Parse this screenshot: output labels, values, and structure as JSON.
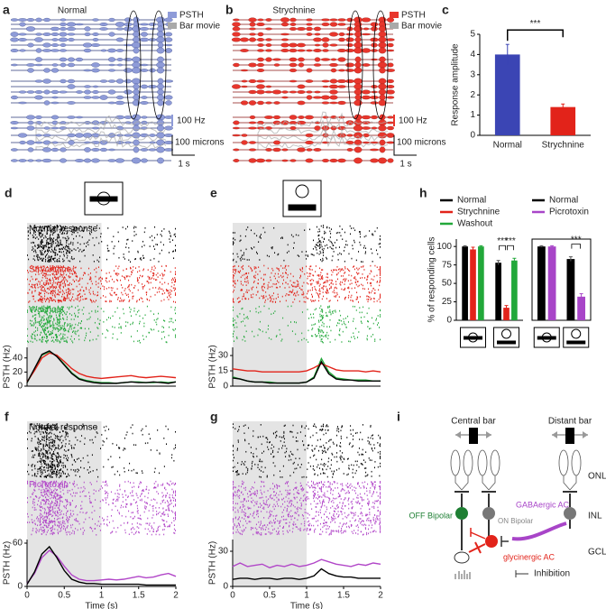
{
  "panel_letters": [
    "a",
    "b",
    "c",
    "d",
    "e",
    "f",
    "g",
    "h",
    "i"
  ],
  "panel_a": {
    "title": "Normal",
    "legend": [
      {
        "name": "PSTH",
        "color": "#8e9bd8"
      },
      {
        "name": "Bar movie",
        "color": "#a9a9a9"
      }
    ],
    "scale_rate": "100 Hz",
    "scale_length": "100 microns",
    "scale_time": "1 s"
  },
  "panel_b": {
    "title": "Strychnine",
    "legend": [
      {
        "name": "PSTH",
        "color": "#e8362c"
      },
      {
        "name": "Bar movie",
        "color": "#a9a9a9"
      }
    ],
    "scale_rate": "100 Hz",
    "scale_length": "100 microns",
    "scale_time": "1 s"
  },
  "raster_labels": {
    "d": [
      {
        "text": "Normal response",
        "color": "#000000"
      },
      {
        "text": "Strychnine",
        "color": "#e2231a"
      },
      {
        "text": "Washout",
        "color": "#22a83a"
      }
    ],
    "f": [
      {
        "text": "Normal response",
        "color": "#000000"
      },
      {
        "text": "Picrotoxin",
        "color": "#b146c8"
      }
    ]
  },
  "chart_data": [
    {
      "type": "bar",
      "ylabel": "Response amplitude",
      "categories": [
        "Normal",
        "Strychnine"
      ],
      "values": [
        4.0,
        1.4
      ],
      "errors": [
        0.5,
        0.15
      ],
      "colors": [
        "#3b45b4",
        "#e2231a"
      ],
      "ylim": [
        0,
        5
      ],
      "yticks": [
        0,
        1,
        2,
        3,
        4,
        5
      ],
      "significance": [
        "***"
      ]
    },
    {
      "type": "bar",
      "ylabel": "% of responding cells",
      "categories": [
        null,
        null
      ],
      "series": [
        {
          "name": "Normal",
          "color": "#000000",
          "values": [
            100,
            78
          ],
          "errors": [
            1,
            3
          ]
        },
        {
          "name": "Strychnine",
          "color": "#e2231a",
          "values": [
            96,
            17
          ],
          "errors": [
            3,
            3
          ]
        },
        {
          "name": "Washout",
          "color": "#22a83a",
          "values": [
            100,
            81
          ],
          "errors": [
            1,
            3
          ]
        }
      ],
      "ylim": [
        0,
        110
      ],
      "yticks": [
        0,
        25,
        50,
        75,
        100
      ],
      "significance": [
        "***",
        "***"
      ]
    },
    {
      "type": "bar",
      "categories": [
        null,
        null
      ],
      "series": [
        {
          "name": "Normal",
          "color": "#000000",
          "values": [
            100,
            83
          ],
          "errors": [
            1,
            3
          ]
        },
        {
          "name": "Picrotoxin",
          "color": "#a845c8",
          "values": [
            100,
            32
          ],
          "errors": [
            1,
            4
          ]
        }
      ],
      "ylim": [
        0,
        110
      ],
      "frame": true,
      "significance": [
        "***"
      ]
    },
    {
      "type": "line",
      "ylabel": "PSTH (Hz)",
      "xlim": [
        0,
        2
      ],
      "ylim": [
        0,
        55
      ],
      "yticks": [
        0,
        20,
        40
      ],
      "stimulus_window": [
        0,
        1
      ],
      "x": [
        0,
        0.1,
        0.2,
        0.3,
        0.4,
        0.5,
        0.6,
        0.7,
        0.8,
        0.9,
        1,
        1.1,
        1.2,
        1.3,
        1.4,
        1.5,
        1.6,
        1.7,
        1.8,
        1.9,
        2
      ],
      "series": [
        {
          "name": "Normal",
          "color": "#000000",
          "values": [
            5,
            25,
            45,
            50,
            42,
            30,
            18,
            10,
            7,
            5,
            4,
            4,
            4,
            5,
            6,
            5,
            5,
            6,
            5,
            4,
            6
          ]
        },
        {
          "name": "Strychnine",
          "color": "#e2231a",
          "values": [
            6,
            22,
            40,
            47,
            44,
            35,
            25,
            18,
            14,
            12,
            11,
            12,
            13,
            14,
            15,
            13,
            12,
            13,
            14,
            13,
            12
          ]
        },
        {
          "name": "Washout",
          "color": "#22a83a",
          "values": [
            5,
            24,
            44,
            49,
            43,
            31,
            19,
            11,
            8,
            6,
            5,
            5,
            4,
            5,
            6,
            6,
            5,
            5,
            6,
            5,
            6
          ]
        }
      ]
    },
    {
      "type": "line",
      "ylabel": "PSTH (Hz)",
      "xlim": [
        0,
        2
      ],
      "ylim": [
        0,
        38
      ],
      "yticks": [
        0,
        15,
        30
      ],
      "stimulus_window": [
        0,
        1
      ],
      "x": [
        0,
        0.1,
        0.2,
        0.3,
        0.4,
        0.5,
        0.6,
        0.7,
        0.8,
        0.9,
        1,
        1.1,
        1.2,
        1.3,
        1.4,
        1.5,
        1.6,
        1.7,
        1.8,
        1.9,
        2
      ],
      "series": [
        {
          "name": "Normal",
          "color": "#000000",
          "values": [
            8,
            7,
            5,
            4,
            4,
            3,
            3,
            3,
            3,
            3,
            4,
            8,
            24,
            12,
            7,
            6,
            6,
            5,
            5,
            5,
            5
          ]
        },
        {
          "name": "Strychnine",
          "color": "#e2231a",
          "values": [
            17,
            16,
            15,
            15,
            14,
            14,
            14,
            14,
            14,
            14,
            15,
            18,
            22,
            19,
            16,
            15,
            15,
            15,
            14,
            15,
            14
          ]
        },
        {
          "name": "Washout",
          "color": "#22a83a",
          "values": [
            9,
            7,
            5,
            4,
            4,
            4,
            3,
            3,
            3,
            3,
            4,
            9,
            27,
            14,
            8,
            7,
            6,
            6,
            6,
            5,
            5
          ]
        }
      ]
    },
    {
      "type": "line",
      "ylabel": "PSTH (Hz)",
      "xlabel": "Time (s)",
      "xlim": [
        0,
        2
      ],
      "ylim": [
        0,
        65
      ],
      "yticks": [
        0,
        60
      ],
      "xticks": [
        0,
        0.5,
        1,
        1.5,
        2
      ],
      "stimulus_window": [
        0,
        1
      ],
      "x": [
        0,
        0.1,
        0.2,
        0.3,
        0.4,
        0.5,
        0.6,
        0.7,
        0.8,
        0.9,
        1,
        1.1,
        1.2,
        1.3,
        1.4,
        1.5,
        1.6,
        1.7,
        1.8,
        1.9,
        2
      ],
      "series": [
        {
          "name": "Normal",
          "color": "#000000",
          "values": [
            3,
            20,
            45,
            55,
            40,
            22,
            10,
            6,
            4,
            4,
            3,
            3,
            3,
            3,
            3,
            3,
            2,
            2,
            2,
            2,
            2
          ]
        },
        {
          "name": "Picrotoxin",
          "color": "#b146c8",
          "values": [
            4,
            18,
            40,
            50,
            42,
            28,
            16,
            10,
            8,
            8,
            9,
            10,
            9,
            10,
            12,
            14,
            12,
            13,
            16,
            18,
            14
          ]
        }
      ]
    },
    {
      "type": "line",
      "ylabel": "PSTH (Hz)",
      "xlabel": "Time (s)",
      "xlim": [
        0,
        2
      ],
      "ylim": [
        0,
        40
      ],
      "yticks": [
        0,
        30
      ],
      "xticks": [
        0,
        0.5,
        1,
        1.5,
        2
      ],
      "stimulus_window": [
        0,
        1
      ],
      "x": [
        0,
        0.1,
        0.2,
        0.3,
        0.4,
        0.5,
        0.6,
        0.7,
        0.8,
        0.9,
        1,
        1.1,
        1.2,
        1.3,
        1.4,
        1.5,
        1.6,
        1.7,
        1.8,
        1.9,
        2
      ],
      "series": [
        {
          "name": "Normal",
          "color": "#000000",
          "values": [
            6,
            7,
            7,
            6,
            7,
            7,
            6,
            7,
            7,
            6,
            7,
            9,
            15,
            11,
            9,
            8,
            8,
            7,
            7,
            7,
            7
          ]
        },
        {
          "name": "Picrotoxin",
          "color": "#b146c8",
          "values": [
            17,
            20,
            17,
            18,
            19,
            16,
            18,
            17,
            19,
            17,
            18,
            20,
            23,
            21,
            19,
            18,
            17,
            19,
            18,
            20,
            19
          ]
        }
      ]
    }
  ],
  "diagram": {
    "central_bar": "Central bar",
    "distant_bar": "Distant bar",
    "layers": [
      "ONL",
      "INL",
      "GCL"
    ],
    "off_bipolar": "OFF Bipolar",
    "on_bipolar": "ON Bipolar",
    "gabaergic": "GABAergic AC",
    "glycinergic": "glycinergic AC",
    "inhibition": "Inhibition"
  }
}
